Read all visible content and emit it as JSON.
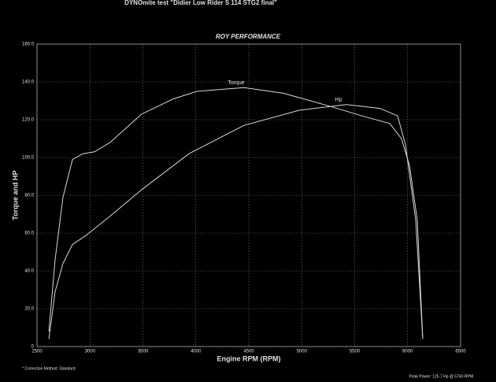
{
  "chart_data": {
    "type": "line",
    "title": "DYNOmite test \"Didier Low Rider S 114 STG2 final\"",
    "subtitle": "ROY PERFORMANCE",
    "x_label": "Engine RPM (RPM)",
    "y_label": "Torque and HP",
    "footnote_left": "* Correction Method: Standard",
    "footnote_right": "Peak Power: 125.7 Hp @ 5740 RPM",
    "grid": true,
    "xlim": [
      2500,
      6500
    ],
    "xticks": [
      2500,
      3000,
      3500,
      4000,
      4500,
      5000,
      5500,
      6000,
      6500
    ],
    "ylim": [
      0,
      160
    ],
    "yticks": [
      0,
      {
        "value": 20,
        "label": "20.0"
      },
      {
        "value": 40,
        "label": "40.0"
      },
      {
        "value": 60,
        "label": "60.0"
      },
      {
        "value": 80,
        "label": "80.0"
      },
      {
        "value": 100,
        "label": "100.0"
      },
      {
        "value": 120,
        "label": "120.0"
      },
      {
        "value": 140,
        "label": "140.0"
      },
      {
        "value": 160,
        "label": "160.0"
      }
    ],
    "series": [
      {
        "name": "Torque",
        "color": "#d8d8d8",
        "x": [
          2612,
          2671,
          2745,
          2835,
          2931,
          3043,
          3191,
          3489,
          3786,
          4009,
          4455,
          4827,
          5273,
          5571,
          5831,
          5942,
          6017,
          6091,
          6143
        ],
        "values": [
          8,
          46,
          79,
          99,
          102,
          103,
          108,
          123,
          131,
          135,
          137,
          134,
          127,
          122,
          118,
          110,
          96,
          67,
          4
        ]
      },
      {
        "name": "Hp",
        "color": "#d8d8d8",
        "x": [
          2612,
          2671,
          2745,
          2835,
          2968,
          3191,
          3489,
          3935,
          4455,
          4976,
          5422,
          5740,
          5905,
          5979,
          6076,
          6143
        ],
        "values": [
          4,
          29,
          44,
          54,
          59,
          69,
          83,
          102,
          117,
          125,
          128,
          126,
          122,
          107,
          67,
          4
        ]
      }
    ]
  }
}
